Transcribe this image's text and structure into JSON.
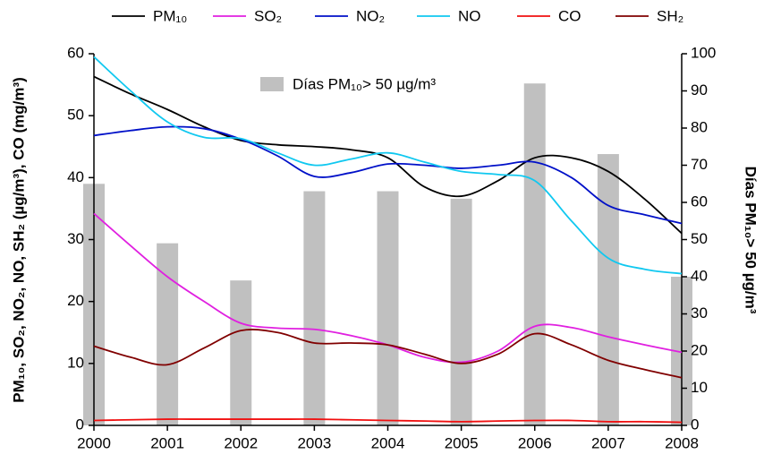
{
  "chart_data": {
    "type": "line",
    "y_label": "PM₁₀, SO₂, NO₂, NO, SH₂ (µg/m³), CO (mg/m³)",
    "y2_label": "Días PM₁₀> 50 µg/m³",
    "x": [
      2000,
      2000.5,
      2001,
      2001.5,
      2002,
      2002.5,
      2003,
      2003.5,
      2004,
      2004.5,
      2005,
      2005.5,
      2006,
      2006.5,
      2007,
      2007.5,
      2008
    ],
    "xlim": [
      2000,
      2008
    ],
    "xticks": [
      2000,
      2001,
      2002,
      2003,
      2004,
      2005,
      2006,
      2007,
      2008
    ],
    "ylim": [
      0,
      60
    ],
    "yticks": [
      0,
      10,
      20,
      30,
      40,
      50,
      60
    ],
    "y2lim": [
      0,
      100
    ],
    "y2ticks": [
      0,
      10,
      20,
      30,
      40,
      50,
      60,
      70,
      80,
      90,
      100
    ],
    "grid": false,
    "series": [
      {
        "name": "PM₁₀",
        "color": "#000000",
        "values": [
          56.3,
          53.5,
          51,
          48.2,
          46,
          45.3,
          45,
          44.5,
          43.2,
          38.5,
          37,
          39.5,
          43.2,
          43.2,
          41,
          36.5,
          31
        ]
      },
      {
        "name": "SO₂",
        "color": "#e020e0",
        "values": [
          34.2,
          29,
          24,
          20,
          16.5,
          15.7,
          15.5,
          14.5,
          13,
          11,
          10.2,
          12,
          16,
          15.8,
          14.3,
          13,
          11.8
        ]
      },
      {
        "name": "NO₂",
        "color": "#0010c8",
        "values": [
          46.8,
          47.6,
          48.2,
          47.9,
          46.2,
          43.5,
          40.2,
          40.8,
          42.2,
          42,
          41.5,
          42,
          42.5,
          40,
          35.5,
          34,
          32.6
        ]
      },
      {
        "name": "NO",
        "color": "#10c8f0",
        "values": [
          59.5,
          54,
          49,
          46.5,
          46.3,
          44,
          42,
          43,
          44,
          42.5,
          41,
          40.5,
          39.5,
          33,
          27,
          25.2,
          24.5
        ]
      },
      {
        "name": "CO",
        "color": "#f01010",
        "values": [
          0.8,
          0.9,
          1.0,
          1.0,
          1.0,
          1.0,
          1.0,
          0.9,
          0.8,
          0.7,
          0.6,
          0.7,
          0.8,
          0.8,
          0.6,
          0.6,
          0.5
        ]
      },
      {
        "name": "SH₂",
        "color": "#800000",
        "values": [
          12.8,
          11,
          9.8,
          12.5,
          15.3,
          15,
          13.3,
          13.3,
          13,
          11.5,
          10,
          11.5,
          14.8,
          13,
          10.5,
          9,
          7.7
        ]
      }
    ],
    "bars": {
      "name": "Días PM₁₀> 50 µg/m³",
      "color": "#c0c0c0",
      "axis": "y2",
      "x": [
        2000,
        2001,
        2002,
        2003,
        2004,
        2005,
        2006,
        2007,
        2008
      ],
      "values": [
        65,
        49,
        39,
        63,
        63,
        61,
        92,
        73,
        40
      ]
    }
  }
}
